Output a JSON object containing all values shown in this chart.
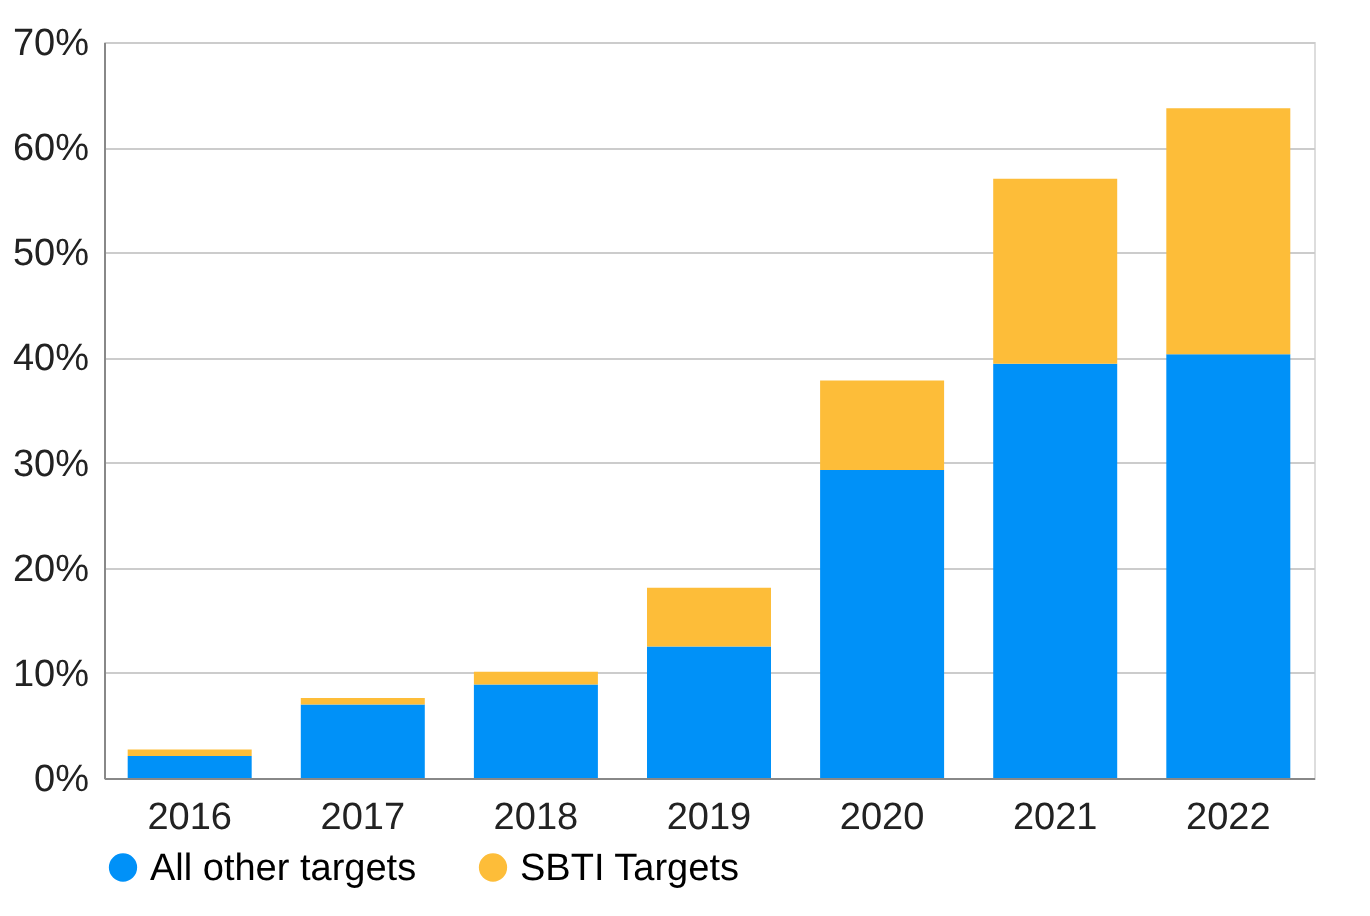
{
  "chart_data": {
    "type": "bar",
    "stacked": true,
    "categories": [
      "2016",
      "2017",
      "2018",
      "2019",
      "2020",
      "2021",
      "2022"
    ],
    "series": [
      {
        "name": "All other targets",
        "color": "#0091f8",
        "values": [
          2.1,
          7.0,
          8.9,
          12.5,
          29.3,
          39.4,
          40.3
        ]
      },
      {
        "name": "SBTI Targets",
        "color": "#fdbd39",
        "values": [
          0.6,
          0.6,
          1.2,
          5.6,
          8.5,
          17.6,
          23.4
        ]
      }
    ],
    "ylim": [
      0,
      70
    ],
    "yticks": [
      {
        "value": 0,
        "label": "0%"
      },
      {
        "value": 10,
        "label": "10%"
      },
      {
        "value": 20,
        "label": "20%"
      },
      {
        "value": 30,
        "label": "30%"
      },
      {
        "value": 40,
        "label": "40%"
      },
      {
        "value": 50,
        "label": "50%"
      },
      {
        "value": 60,
        "label": "60%"
      },
      {
        "value": 70,
        "label": "70%"
      }
    ],
    "grid": "y",
    "legend": "bottom left"
  }
}
